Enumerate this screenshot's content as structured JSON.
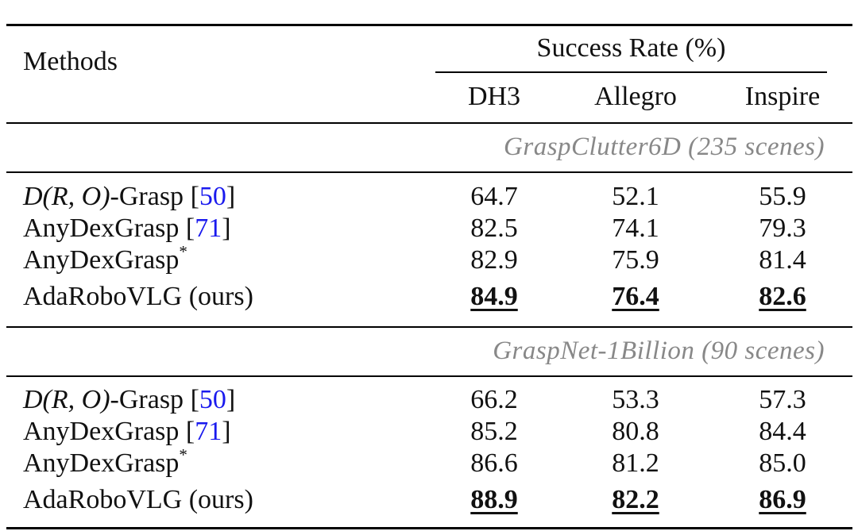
{
  "header": {
    "methods": "Methods",
    "group": "Success Rate (%)",
    "columns": [
      "DH3",
      "Allegro",
      "Inspire"
    ]
  },
  "sections": [
    {
      "title": "GraspClutter6D (235 scenes)",
      "rows": [
        {
          "name": "-Grasp",
          "math": true,
          "ref": "50",
          "values": [
            "64.7",
            "52.1",
            "55.9"
          ],
          "best": false
        },
        {
          "name": "AnyDexGrasp",
          "ref": "71",
          "values": [
            "82.5",
            "74.1",
            "79.3"
          ],
          "best": false
        },
        {
          "name": "AnyDexGrasp",
          "star": "*",
          "values": [
            "82.9",
            "75.9",
            "81.4"
          ],
          "best": false
        },
        {
          "name": "AdaRoboVLG (ours)",
          "values": [
            "84.9",
            "76.4",
            "82.6"
          ],
          "best": true
        }
      ]
    },
    {
      "title": "GraspNet-1Billion (90 scenes)",
      "rows": [
        {
          "name": "-Grasp",
          "math": true,
          "ref": "50",
          "values": [
            "66.2",
            "53.3",
            "57.3"
          ],
          "best": false
        },
        {
          "name": "AnyDexGrasp",
          "ref": "71",
          "values": [
            "85.2",
            "80.8",
            "84.4"
          ],
          "best": false
        },
        {
          "name": "AnyDexGrasp",
          "star": "*",
          "values": [
            "86.6",
            "81.2",
            "85.0"
          ],
          "best": false
        },
        {
          "name": "AdaRoboVLG (ours)",
          "values": [
            "88.9",
            "82.2",
            "86.9"
          ],
          "best": true
        }
      ]
    }
  ],
  "math_label": "D(R, O)"
}
